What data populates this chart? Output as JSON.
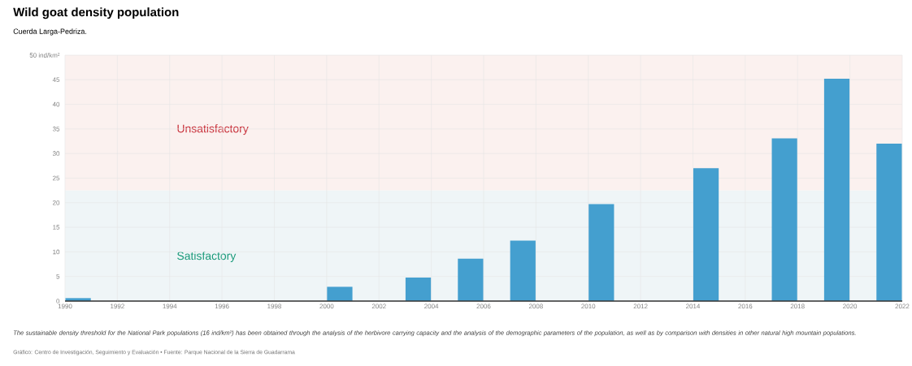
{
  "chart_data": {
    "type": "bar",
    "title": "Wild goat density population",
    "subtitle": "Cuerda Larga-Pedriza.",
    "x": [
      1990.5,
      2000.5,
      2003.5,
      2005.5,
      2007.5,
      2010.5,
      2014.5,
      2017.5,
      2019.5,
      2021.5
    ],
    "values": [
      0.6,
      2.9,
      4.8,
      8.6,
      12.3,
      19.7,
      27.0,
      33.1,
      45.2,
      32.0
    ],
    "color": "#449fcf",
    "xlim": [
      1990,
      2022
    ],
    "xticks": [
      1990,
      1992,
      1994,
      1996,
      1998,
      2000,
      2002,
      2004,
      2006,
      2008,
      2010,
      2012,
      2014,
      2016,
      2018,
      2020,
      2022
    ],
    "ylim": [
      0,
      50
    ],
    "yticks": [
      0,
      5,
      10,
      15,
      20,
      25,
      30,
      35,
      40,
      45,
      {
        "value": 50,
        "label": "50 ind/km²"
      }
    ],
    "bands": [
      {
        "axis": "y",
        "from": 22.5,
        "to": 50,
        "label": "Unsatisfactory",
        "color": "#fbf1ef"
      },
      {
        "axis": "y",
        "from": 0,
        "to": 22.5,
        "label": "Satisfactory",
        "color": "#eff5f7"
      }
    ],
    "grid": true,
    "annotations": [
      "The sustainable density threshold for the National Park populations (16 ind/km²) has been obtained through the analysis of the herbivore carrying capacity and the analysis of the demographic parameters of the population, as well as by comparison with densities in other natural high mountain populations.",
      "Gráfico: Centro de Investigación, Seguimiento y Evaluación • Fuente: Parque Nacional de la Sierra de Guadarrama"
    ]
  }
}
